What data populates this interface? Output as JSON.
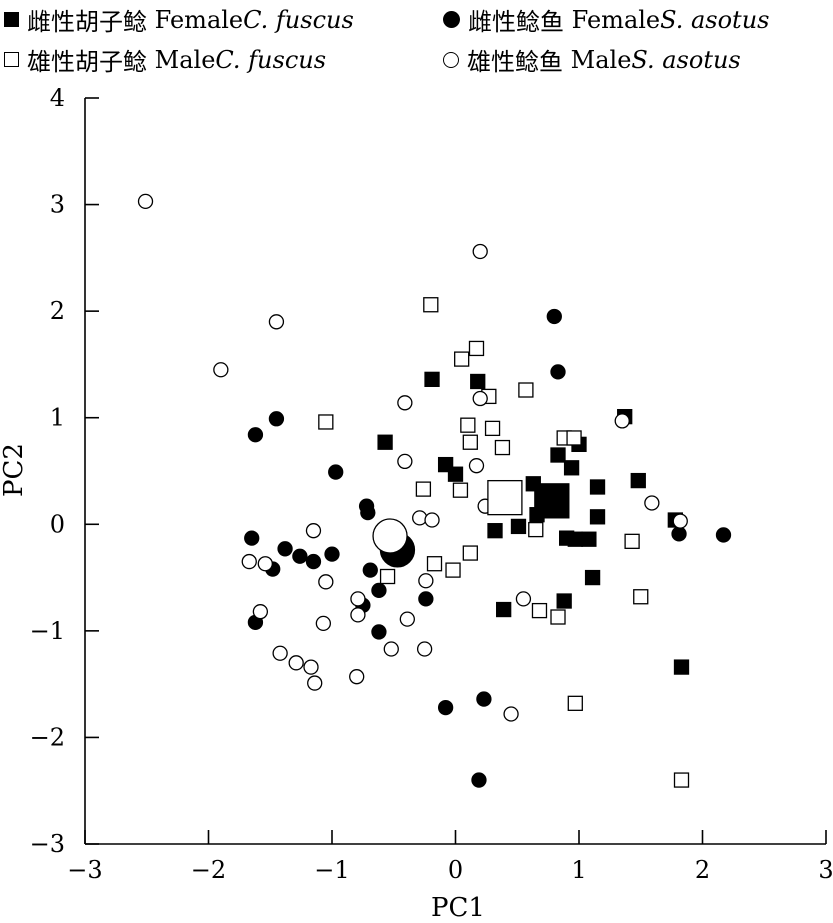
{
  "chart_data": {
    "type": "scatter",
    "title": "",
    "xlabel": "PC1",
    "ylabel": "PC2",
    "xlim": [
      -3,
      3
    ],
    "ylim": [
      -3,
      4
    ],
    "xticks": [
      "−3",
      "−2",
      "−1",
      "0",
      "1",
      "2",
      "3"
    ],
    "yticks": [
      "−3",
      "−2",
      "−1",
      "0",
      "1",
      "2",
      "3",
      "4"
    ],
    "grid": false,
    "legend_position": "top",
    "series": [
      {
        "name_cn": "雌性胡子鲶",
        "name_en": "Female ",
        "name_sp": "C. fuscus",
        "marker": "square",
        "fill": "#000000",
        "centroid": [
          0.78,
          0.22
        ],
        "points": [
          [
            -0.57,
            0.77
          ],
          [
            -0.19,
            1.36
          ],
          [
            0.18,
            1.34
          ],
          [
            -0.08,
            0.56
          ],
          [
            0.0,
            0.47
          ],
          [
            0.33,
            0.26
          ],
          [
            0.63,
            0.38
          ],
          [
            0.83,
            0.65
          ],
          [
            0.94,
            0.53
          ],
          [
            1.0,
            0.75
          ],
          [
            1.15,
            0.35
          ],
          [
            1.15,
            0.07
          ],
          [
            1.37,
            1.01
          ],
          [
            1.48,
            0.41
          ],
          [
            1.78,
            0.04
          ],
          [
            0.66,
            0.09
          ],
          [
            0.51,
            -0.02
          ],
          [
            0.32,
            -0.06
          ],
          [
            0.9,
            -0.13
          ],
          [
            0.97,
            -0.14
          ],
          [
            1.08,
            -0.14
          ],
          [
            1.11,
            -0.5
          ],
          [
            0.88,
            -0.72
          ],
          [
            0.39,
            -0.8
          ],
          [
            1.83,
            -1.34
          ]
        ]
      },
      {
        "name_cn": "雄性胡子鲶",
        "name_en": "Male ",
        "name_sp": "C. fuscus",
        "marker": "square",
        "fill": "#ffffff",
        "centroid": [
          0.4,
          0.25
        ],
        "points": [
          [
            -0.2,
            2.06
          ],
          [
            0.17,
            1.65
          ],
          [
            0.05,
            1.55
          ],
          [
            0.57,
            1.26
          ],
          [
            0.27,
            1.2
          ],
          [
            -1.05,
            0.96
          ],
          [
            0.1,
            0.93
          ],
          [
            0.3,
            0.9
          ],
          [
            0.12,
            0.77
          ],
          [
            0.38,
            0.72
          ],
          [
            0.88,
            0.81
          ],
          [
            0.96,
            0.81
          ],
          [
            -0.26,
            0.33
          ],
          [
            0.04,
            0.32
          ],
          [
            -0.02,
            -0.43
          ],
          [
            -0.17,
            -0.37
          ],
          [
            0.12,
            -0.27
          ],
          [
            0.65,
            -0.05
          ],
          [
            -0.55,
            -0.49
          ],
          [
            0.68,
            -0.81
          ],
          [
            0.83,
            -0.87
          ],
          [
            1.43,
            -0.16
          ],
          [
            1.5,
            -0.68
          ],
          [
            0.97,
            -1.68
          ],
          [
            1.83,
            -2.4
          ]
        ]
      },
      {
        "name_cn": "雌性鲶鱼",
        "name_en": "Female ",
        "name_sp": "S. asotus",
        "marker": "circle",
        "fill": "#000000",
        "centroid": [
          -0.47,
          -0.24
        ],
        "points": [
          [
            0.8,
            1.95
          ],
          [
            0.83,
            1.43
          ],
          [
            -1.62,
            0.84
          ],
          [
            -1.45,
            0.99
          ],
          [
            -0.97,
            0.49
          ],
          [
            -0.72,
            0.17
          ],
          [
            -0.71,
            0.11
          ],
          [
            -1.65,
            -0.13
          ],
          [
            -1.38,
            -0.23
          ],
          [
            -1.26,
            -0.3
          ],
          [
            -1.15,
            -0.35
          ],
          [
            -1.48,
            -0.42
          ],
          [
            -1.0,
            -0.28
          ],
          [
            -0.69,
            -0.43
          ],
          [
            -0.62,
            -0.62
          ],
          [
            -0.75,
            -0.76
          ],
          [
            -0.62,
            -1.01
          ],
          [
            -1.62,
            -0.92
          ],
          [
            -0.24,
            -0.7
          ],
          [
            -0.08,
            -1.72
          ],
          [
            0.23,
            -1.64
          ],
          [
            0.19,
            -2.4
          ],
          [
            1.81,
            -0.09
          ],
          [
            2.17,
            -0.1
          ]
        ]
      },
      {
        "name_cn": "雄性鲶鱼",
        "name_en": " Male ",
        "name_sp": "S. asotus",
        "marker": "circle",
        "fill": "#ffffff",
        "centroid": [
          -0.53,
          -0.11
        ],
        "points": [
          [
            -2.51,
            3.03
          ],
          [
            0.2,
            2.56
          ],
          [
            -1.45,
            1.9
          ],
          [
            -1.9,
            1.45
          ],
          [
            -0.41,
            1.14
          ],
          [
            0.2,
            1.18
          ],
          [
            -0.41,
            0.59
          ],
          [
            0.17,
            0.55
          ],
          [
            1.35,
            0.97
          ],
          [
            1.59,
            0.2
          ],
          [
            1.82,
            0.03
          ],
          [
            -1.15,
            -0.06
          ],
          [
            -0.29,
            0.06
          ],
          [
            -0.19,
            0.04
          ],
          [
            0.24,
            0.17
          ],
          [
            -1.67,
            -0.35
          ],
          [
            -1.54,
            -0.37
          ],
          [
            -1.58,
            -0.82
          ],
          [
            -1.05,
            -0.54
          ],
          [
            -0.79,
            -0.7
          ],
          [
            -0.79,
            -0.85
          ],
          [
            -1.07,
            -0.93
          ],
          [
            -0.39,
            -0.89
          ],
          [
            -0.24,
            -0.53
          ],
          [
            -1.42,
            -1.21
          ],
          [
            -1.29,
            -1.3
          ],
          [
            -1.17,
            -1.34
          ],
          [
            -1.14,
            -1.49
          ],
          [
            -0.8,
            -1.43
          ],
          [
            -0.52,
            -1.17
          ],
          [
            -0.25,
            -1.17
          ],
          [
            0.55,
            -0.7
          ],
          [
            0.45,
            -1.78
          ]
        ]
      }
    ]
  }
}
